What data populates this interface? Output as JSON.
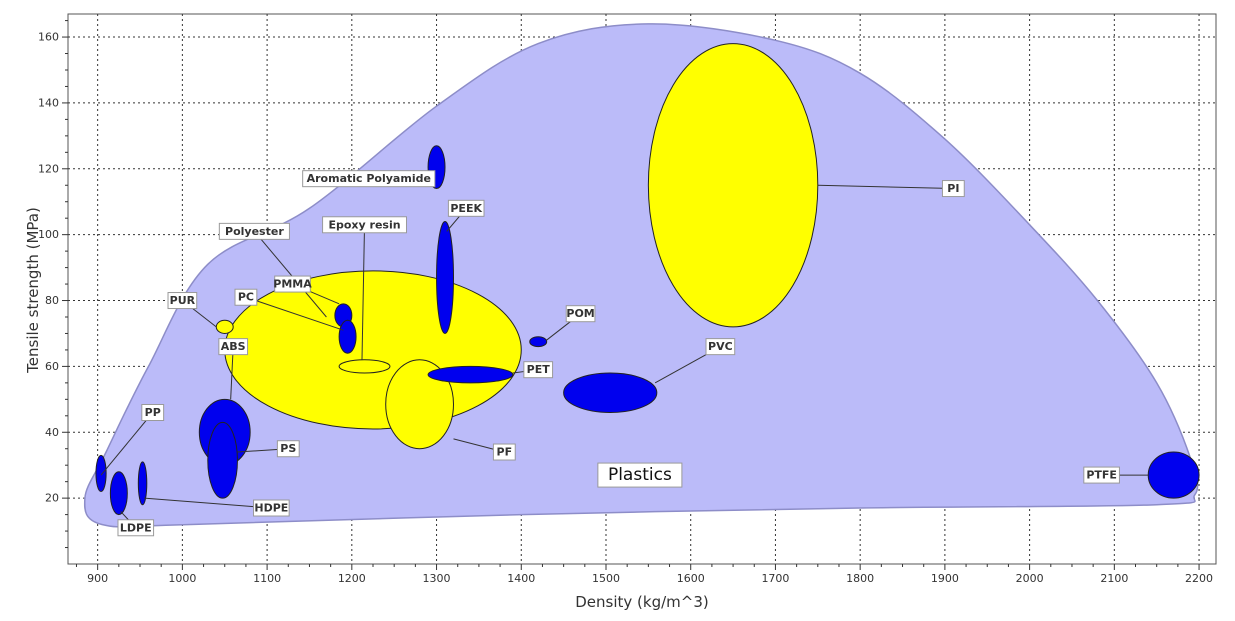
{
  "chart_data": {
    "type": "scatter",
    "title": "",
    "xlabel": "Density (kg/m^3)",
    "ylabel": "Tensile strength (MPa)",
    "xlim": [
      865,
      2220
    ],
    "ylim": [
      0,
      167
    ],
    "x_ticks": [
      900,
      1000,
      1100,
      1200,
      1300,
      1400,
      1500,
      1600,
      1700,
      1800,
      1900,
      2000,
      2100,
      2200
    ],
    "y_ticks": [
      20,
      40,
      60,
      80,
      100,
      120,
      140,
      160
    ],
    "grid": true,
    "legend": "none",
    "envelope": {
      "label": "Plastics",
      "label_at": [
        1540,
        27
      ],
      "boundary": [
        [
          1010,
          12
        ],
        [
          1400,
          15
        ],
        [
          1800,
          17
        ],
        [
          2150,
          18
        ],
        [
          2195,
          21
        ],
        [
          2190,
          32
        ],
        [
          2150,
          55
        ],
        [
          2080,
          80
        ],
        [
          2000,
          103
        ],
        [
          1900,
          129
        ],
        [
          1800,
          149
        ],
        [
          1700,
          159
        ],
        [
          1550,
          164
        ],
        [
          1420,
          158
        ],
        [
          1300,
          139
        ],
        [
          1150,
          108
        ],
        [
          1030,
          91
        ],
        [
          960,
          60
        ],
        [
          910,
          34
        ],
        [
          885,
          20
        ],
        [
          905,
          12
        ]
      ]
    },
    "materials": [
      {
        "name": "Polyester",
        "density": [
          1050,
          1400
        ],
        "strength": [
          41,
          89
        ],
        "kind": "family",
        "label_at": [
          1085,
          101
        ],
        "anchor": [
          1170,
          75
        ]
      },
      {
        "name": "PI",
        "density": [
          1550,
          1750
        ],
        "strength": [
          72,
          158
        ],
        "kind": "family",
        "label_at": [
          1910,
          114
        ],
        "anchor": [
          1750,
          115
        ]
      },
      {
        "name": "PF",
        "density": [
          1240,
          1320
        ],
        "strength": [
          35,
          62
        ],
        "kind": "family",
        "label_at": [
          1380,
          34
        ],
        "anchor": [
          1320,
          38
        ]
      },
      {
        "name": "PUR",
        "density": [
          1040,
          1060
        ],
        "strength": [
          70,
          74
        ],
        "kind": "family",
        "label_at": [
          1000,
          80
        ],
        "anchor": [
          1040,
          72
        ]
      },
      {
        "name": "Epoxy resin",
        "density": [
          1185,
          1245
        ],
        "strength": [
          58,
          62
        ],
        "kind": "family",
        "label_at": [
          1215,
          103
        ],
        "anchor": [
          1212,
          62
        ]
      },
      {
        "name": "Aromatic Polyamide",
        "density": [
          1290,
          1310
        ],
        "strength": [
          114,
          127
        ],
        "kind": "material",
        "label_at": [
          1220,
          117
        ],
        "anchor": [
          1292,
          117
        ]
      },
      {
        "name": "PEEK",
        "density": [
          1300,
          1320
        ],
        "strength": [
          70,
          104
        ],
        "kind": "material",
        "label_at": [
          1335,
          108
        ],
        "anchor": [
          1312,
          101
        ]
      },
      {
        "name": "PMMA",
        "density": [
          1180,
          1200
        ],
        "strength": [
          72,
          79
        ],
        "kind": "material",
        "label_at": [
          1130,
          85
        ],
        "anchor": [
          1185,
          79
        ]
      },
      {
        "name": "PC",
        "density": [
          1185,
          1205
        ],
        "strength": [
          64,
          74
        ],
        "kind": "material",
        "label_at": [
          1075,
          81
        ],
        "anchor": [
          1190,
          71
        ]
      },
      {
        "name": "POM",
        "density": [
          1410,
          1430
        ],
        "strength": [
          66,
          69
        ],
        "kind": "material",
        "label_at": [
          1470,
          76
        ],
        "anchor": [
          1430,
          68
        ]
      },
      {
        "name": "PET",
        "density": [
          1290,
          1390
        ],
        "strength": [
          55,
          60
        ],
        "kind": "material",
        "label_at": [
          1420,
          59
        ],
        "anchor": [
          1390,
          58
        ]
      },
      {
        "name": "PVC",
        "density": [
          1450,
          1560
        ],
        "strength": [
          46,
          58
        ],
        "kind": "material",
        "label_at": [
          1635,
          66
        ],
        "anchor": [
          1558,
          55
        ]
      },
      {
        "name": "PTFE",
        "density": [
          2140,
          2200
        ],
        "strength": [
          20,
          34
        ],
        "kind": "material",
        "label_at": [
          2085,
          27
        ],
        "anchor": [
          2140,
          27
        ]
      },
      {
        "name": "ABS",
        "density": [
          1020,
          1080
        ],
        "strength": [
          30,
          50
        ],
        "kind": "material",
        "label_at": [
          1060,
          66
        ],
        "anchor": [
          1057,
          50
        ]
      },
      {
        "name": "PS",
        "density": [
          1030,
          1065
        ],
        "strength": [
          20,
          43
        ],
        "kind": "material",
        "label_at": [
          1125,
          35
        ],
        "anchor": [
          1065,
          34
        ]
      },
      {
        "name": "PP",
        "density": [
          898,
          910
        ],
        "strength": [
          22,
          33
        ],
        "kind": "material",
        "label_at": [
          965,
          46
        ],
        "anchor": [
          904,
          27
        ]
      },
      {
        "name": "LDPE",
        "density": [
          915,
          935
        ],
        "strength": [
          15,
          28
        ],
        "kind": "material",
        "label_at": [
          945,
          11
        ],
        "anchor": [
          927,
          16
        ]
      },
      {
        "name": "HDPE",
        "density": [
          948,
          958
        ],
        "strength": [
          18,
          31
        ],
        "kind": "material",
        "label_at": [
          1105,
          17
        ],
        "anchor": [
          955,
          20
        ]
      }
    ],
    "colors": {
      "envelope_fill": "#bbbbf9",
      "envelope_stroke": "#8d8dc8",
      "family_fill": "#ffff00",
      "material_fill": "#0000ee",
      "ellipse_stroke": "#222222",
      "grid": "#333333"
    }
  }
}
